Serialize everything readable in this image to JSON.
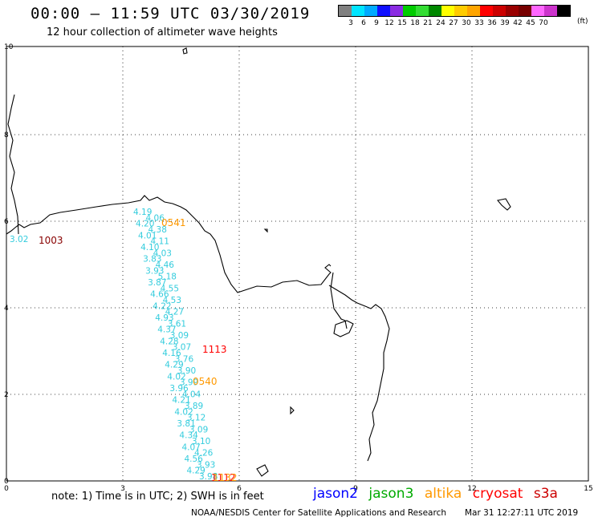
{
  "title": "00:00 – 11:59 UTC 03/30/2019",
  "subtitle": "12 hour collection of altimeter wave heights",
  "legend": {
    "colors": [
      "#808080",
      "#00e5ff",
      "#00aaff",
      "#1010ff",
      "#8a2be2",
      "#00cc00",
      "#33dd33",
      "#008800",
      "#ffff00",
      "#ffcc00",
      "#ffa500",
      "#ff0000",
      "#cc0000",
      "#990000",
      "#770000",
      "#ff66ff",
      "#cc33cc",
      "#000000"
    ],
    "labels": [
      "3",
      "6",
      "9",
      "12",
      "15",
      "18",
      "21",
      "24",
      "27",
      "30",
      "33",
      "36",
      "39",
      "42",
      "45",
      "70"
    ],
    "unit": "(ft)"
  },
  "axes": {
    "x_ticks": [
      "0",
      "3",
      "6",
      "9",
      "12",
      "15"
    ],
    "y_ticks": [
      "0",
      "2",
      "4",
      "6",
      "8",
      "10"
    ]
  },
  "note": "note: 1) Time is in UTC; 2) SWH is in feet",
  "sources": [
    {
      "name": "jason2",
      "color": "#0000ff"
    },
    {
      "name": "jason3",
      "color": "#00aa00"
    },
    {
      "name": "altika",
      "color": "#ff9900"
    },
    {
      "name": "cryosat",
      "color": "#ff0000"
    },
    {
      "name": "s3a",
      "color": "#cc0000"
    }
  ],
  "credit": "NOAA/NESDIS Center for Satellite Applications and Research",
  "timestamp": "Mar 31 12:27:11 UTC 2019",
  "track_colors": {
    "wave": "#33ccdd",
    "altika": "#ff9900",
    "cryosat": "#ff0000",
    "s3a": "#880000"
  },
  "wave_labels": [
    "4.19",
    "4.06",
    "4.20",
    "4.38",
    "4.01",
    "4.11",
    "4.10",
    "4.03",
    "3.83",
    "4.46",
    "3.93",
    "5.18",
    "3.87",
    "4.55",
    "4.66",
    "4.53",
    "4.22",
    "4.27",
    "4.93",
    "3.61",
    "4.37",
    "3.09",
    "4.28",
    "3.07",
    "4.16",
    "3.76",
    "4.29",
    "3.90",
    "4.02",
    "3.99",
    "3.96",
    "4.04",
    "4.21",
    "3.89",
    "4.02",
    "3.12",
    "3.81",
    "3.09",
    "4.34",
    "3.10",
    "4.07",
    "4.26",
    "4.56",
    "3.93",
    "4.29",
    "3.98",
    "3.02"
  ],
  "time_labels": [
    {
      "text": "0541",
      "sat": "altika"
    },
    {
      "text": "1003",
      "sat": "s3a"
    },
    {
      "text": "1113",
      "sat": "cryosat"
    },
    {
      "text": "0540",
      "sat": "altika"
    },
    {
      "text": "1112",
      "sat": "cryosat"
    },
    {
      "text": "1132",
      "sat": "altika"
    }
  ]
}
